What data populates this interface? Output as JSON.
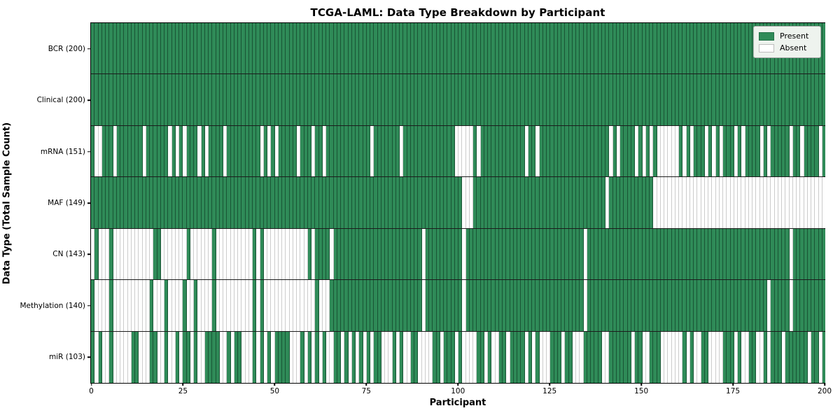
{
  "chart_data": {
    "type": "heatmap",
    "title": "TCGA-LAML: Data Type Breakdown by Participant",
    "xlabel": "Participant",
    "ylabel": "Data Type (Total Sample Count)",
    "x_range": [
      0,
      200
    ],
    "x_ticks": [
      0,
      25,
      50,
      75,
      100,
      125,
      150,
      175,
      200
    ],
    "participants": 200,
    "grid": false,
    "legend": {
      "position": "upper right",
      "entries": [
        {
          "label": "Present",
          "color": "#2f8b58"
        },
        {
          "label": "Absent",
          "color": "#ffffff"
        }
      ]
    },
    "colors": {
      "present": "#2f8b58",
      "absent": "#ffffff",
      "gridline_on_present": "#113f27",
      "gridline_on_absent": "#cbcbcb",
      "border": "#000000"
    },
    "rows": [
      {
        "label": "BCR (200)",
        "data_type": "BCR",
        "present_count": 200,
        "absent_count": 0,
        "absent": []
      },
      {
        "label": "Clinical (200)",
        "data_type": "Clinical",
        "present_count": 200,
        "absent_count": 0,
        "absent": []
      },
      {
        "label": "mRNA (151)",
        "data_type": "mRNA",
        "present_count": 151,
        "absent_count": 49,
        "absent": [
          1,
          2,
          6,
          14,
          21,
          23,
          25,
          29,
          31,
          36,
          46,
          48,
          50,
          56,
          60,
          63,
          76,
          84,
          99,
          100,
          101,
          102,
          103,
          105,
          118,
          121,
          141,
          143,
          148,
          150,
          152,
          154,
          155,
          156,
          157,
          158,
          159,
          161,
          163,
          167,
          169,
          171,
          175,
          177,
          182,
          184,
          190,
          193,
          198
        ]
      },
      {
        "label": "MAF (149)",
        "data_type": "MAF",
        "present_count": 149,
        "absent_count": 51,
        "absent": [
          101,
          102,
          103,
          140,
          153,
          154,
          155,
          156,
          157,
          158,
          159,
          160,
          161,
          162,
          163,
          164,
          165,
          166,
          167,
          168,
          169,
          170,
          171,
          172,
          173,
          174,
          175,
          176,
          177,
          178,
          179,
          180,
          181,
          182,
          183,
          184,
          185,
          186,
          187,
          188,
          189,
          190,
          191,
          192,
          193,
          194,
          195,
          196,
          197,
          198,
          199
        ]
      },
      {
        "label": "CN (143)",
        "data_type": "CN",
        "present_count": 143,
        "absent_count": 57,
        "absent": [
          0,
          2,
          3,
          4,
          6,
          7,
          8,
          9,
          10,
          11,
          12,
          13,
          14,
          15,
          16,
          19,
          20,
          21,
          22,
          23,
          24,
          25,
          27,
          28,
          29,
          30,
          31,
          32,
          34,
          35,
          36,
          37,
          38,
          39,
          40,
          41,
          42,
          43,
          45,
          47,
          48,
          49,
          50,
          51,
          52,
          53,
          54,
          55,
          56,
          57,
          58,
          60,
          65,
          90,
          101,
          134,
          190
        ]
      },
      {
        "label": "Methylation (140)",
        "data_type": "Methylation",
        "present_count": 140,
        "absent_count": 60,
        "absent": [
          1,
          2,
          3,
          4,
          6,
          7,
          8,
          9,
          10,
          11,
          12,
          13,
          14,
          15,
          17,
          18,
          19,
          21,
          22,
          23,
          24,
          26,
          27,
          29,
          30,
          31,
          32,
          34,
          35,
          36,
          37,
          38,
          39,
          40,
          41,
          42,
          43,
          45,
          47,
          48,
          49,
          50,
          51,
          52,
          53,
          54,
          55,
          56,
          57,
          58,
          59,
          60,
          62,
          63,
          64,
          90,
          101,
          134,
          184,
          190
        ]
      },
      {
        "label": "miR (103)",
        "data_type": "miR",
        "present_count": 103,
        "absent_count": 97,
        "absent": [
          1,
          3,
          4,
          6,
          7,
          8,
          9,
          10,
          13,
          14,
          15,
          18,
          19,
          21,
          22,
          24,
          27,
          29,
          30,
          35,
          36,
          38,
          41,
          42,
          43,
          45,
          47,
          49,
          54,
          55,
          56,
          58,
          60,
          62,
          64,
          65,
          68,
          70,
          72,
          74,
          76,
          79,
          80,
          81,
          83,
          85,
          86,
          89,
          90,
          91,
          92,
          95,
          99,
          101,
          102,
          103,
          104,
          107,
          109,
          110,
          113,
          118,
          120,
          122,
          123,
          124,
          128,
          131,
          132,
          133,
          139,
          140,
          147,
          150,
          151,
          155,
          156,
          157,
          158,
          159,
          160,
          162,
          164,
          165,
          168,
          169,
          170,
          171,
          175,
          177,
          178,
          181,
          182,
          184,
          188,
          195,
          198
        ]
      }
    ]
  }
}
